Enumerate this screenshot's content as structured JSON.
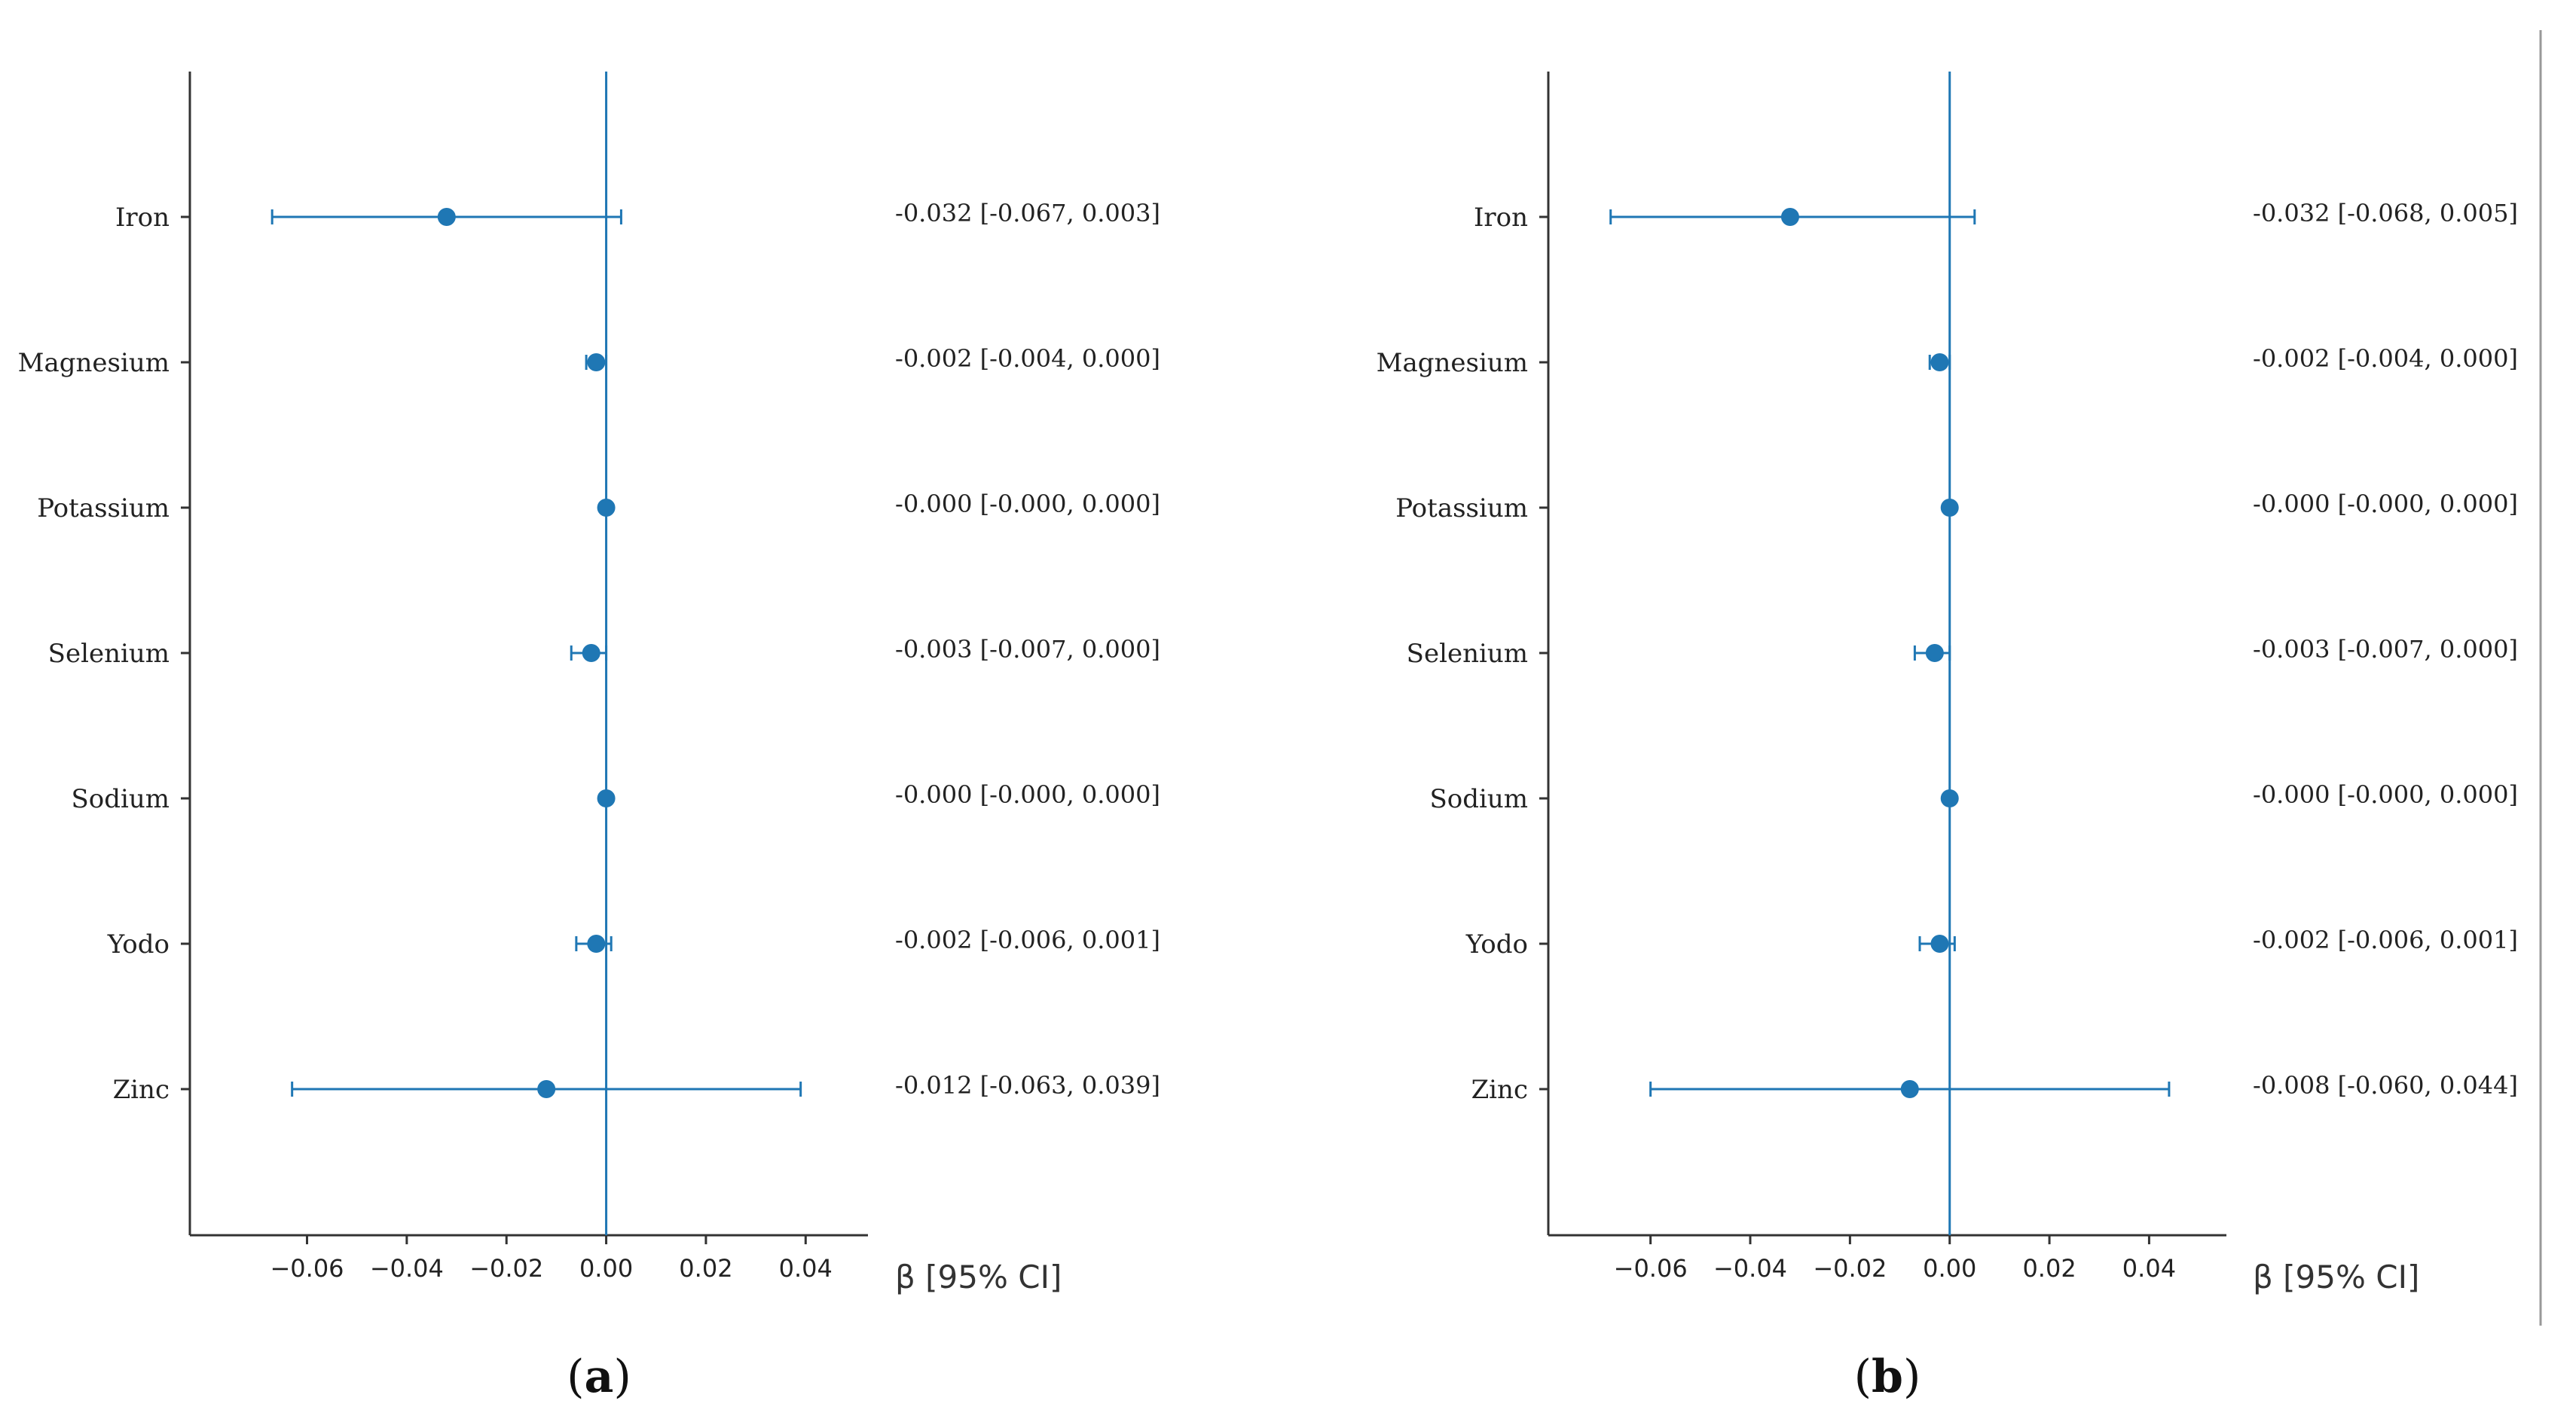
{
  "chart_data": [
    {
      "type": "forest",
      "panel_label": "a",
      "categories": [
        "Iron",
        "Magnesium",
        "Potassium",
        "Selenium",
        "Sodium",
        "Yodo",
        "Zinc"
      ],
      "estimates": [
        -0.032,
        -0.002,
        0.0,
        -0.003,
        0.0,
        -0.002,
        -0.012
      ],
      "ci_lower": [
        -0.067,
        -0.004,
        0.0,
        -0.007,
        0.0,
        -0.006,
        -0.063
      ],
      "ci_upper": [
        0.003,
        0.0,
        0.0,
        0.0,
        0.0,
        0.001,
        0.039
      ],
      "annotations": [
        "-0.032 [-0.067, 0.003]",
        "-0.002 [-0.004, 0.000]",
        "-0.000 [-0.000, 0.000]",
        "-0.003 [-0.007, 0.000]",
        "-0.000 [-0.000, 0.000]",
        "-0.002 [-0.006, 0.001]",
        "-0.012 [-0.063, 0.039]"
      ],
      "xlabel": "β [95% CI]",
      "xticks": [
        -0.06,
        -0.04,
        -0.02,
        0.0,
        0.02,
        0.04
      ],
      "xtick_labels": [
        "−0.06",
        "−0.04",
        "−0.02",
        "0.00",
        "0.02",
        "0.04"
      ],
      "xlim": [
        -0.0835,
        0.0525
      ],
      "reference_line": 0,
      "color": "#1f77b4",
      "grid": false
    },
    {
      "type": "forest",
      "panel_label": "b",
      "categories": [
        "Iron",
        "Magnesium",
        "Potassium",
        "Selenium",
        "Sodium",
        "Yodo",
        "Zinc"
      ],
      "estimates": [
        -0.032,
        -0.002,
        0.0,
        -0.003,
        0.0,
        -0.002,
        -0.008
      ],
      "ci_lower": [
        -0.068,
        -0.004,
        0.0,
        -0.007,
        0.0,
        -0.006,
        -0.06
      ],
      "ci_upper": [
        0.005,
        0.0,
        0.0,
        0.0,
        0.0,
        0.001,
        0.044
      ],
      "annotations": [
        "-0.032 [-0.068, 0.005]",
        "-0.002 [-0.004, 0.000]",
        "-0.000 [-0.000, 0.000]",
        "-0.003 [-0.007, 0.000]",
        "-0.000 [-0.000, 0.000]",
        "-0.002 [-0.006, 0.001]",
        "-0.008 [-0.060, 0.044]"
      ],
      "xlabel": "β [95% CI]",
      "xticks": [
        -0.06,
        -0.04,
        -0.02,
        0.0,
        0.02,
        0.04
      ],
      "xtick_labels": [
        "−0.06",
        "−0.04",
        "−0.02",
        "0.00",
        "0.02",
        "0.04"
      ],
      "xlim": [
        -0.0805,
        0.0555
      ],
      "reference_line": 0,
      "color": "#1f77b4",
      "grid": false
    }
  ]
}
